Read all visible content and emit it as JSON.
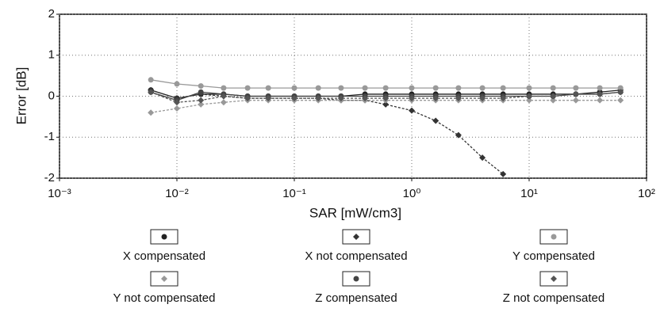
{
  "chart_data": {
    "type": "line",
    "x_label": "SAR [mW/cm3]",
    "y_label": "Error [dB]",
    "x_scale": "log",
    "grid": true,
    "xlim": [
      0.001,
      100
    ],
    "ylim": [
      -2,
      2
    ],
    "xticks": [
      {
        "value": 0.001,
        "label": "10⁻³"
      },
      {
        "value": 0.01,
        "label": "10⁻²"
      },
      {
        "value": 0.1,
        "label": "10⁻¹"
      },
      {
        "value": 1,
        "label": "10⁰"
      },
      {
        "value": 10,
        "label": "10¹"
      },
      {
        "value": 100,
        "label": "10²"
      }
    ],
    "yticks": [
      -2,
      -1,
      0,
      1,
      2
    ],
    "x": [
      0.006,
      0.01,
      0.016,
      0.025,
      0.04,
      0.06,
      0.1,
      0.16,
      0.25,
      0.4,
      0.6,
      1,
      1.6,
      2.5,
      4,
      6,
      10,
      16,
      25,
      40,
      60
    ],
    "series": [
      {
        "name": "X compensated",
        "color": "#222222",
        "marker": "circle",
        "values": [
          0.15,
          -0.05,
          0.05,
          0.05,
          0.0,
          0.0,
          0.0,
          0.0,
          0.0,
          0.05,
          0.05,
          0.05,
          0.05,
          0.05,
          0.05,
          0.05,
          0.05,
          0.05,
          0.05,
          0.1,
          0.15
        ]
      },
      {
        "name": "X not compensated",
        "color": "#333333",
        "marker": "diamond",
        "values": [
          0.15,
          -0.05,
          0.05,
          0.0,
          -0.05,
          -0.05,
          -0.05,
          -0.05,
          -0.1,
          -0.1,
          -0.2,
          -0.35,
          -0.6,
          -0.95,
          -1.5,
          -1.9,
          null,
          null,
          null,
          null,
          null
        ]
      },
      {
        "name": "Y compensated",
        "color": "#999999",
        "marker": "circle",
        "values": [
          0.4,
          0.3,
          0.25,
          0.2,
          0.2,
          0.2,
          0.2,
          0.2,
          0.2,
          0.2,
          0.2,
          0.2,
          0.2,
          0.2,
          0.2,
          0.2,
          0.2,
          0.2,
          0.2,
          0.2,
          0.2
        ]
      },
      {
        "name": "Y not compensated",
        "color": "#999999",
        "marker": "diamond",
        "values": [
          -0.4,
          -0.3,
          -0.2,
          -0.15,
          -0.1,
          -0.1,
          -0.1,
          -0.1,
          -0.1,
          -0.1,
          -0.1,
          -0.1,
          -0.1,
          -0.1,
          -0.1,
          -0.1,
          -0.1,
          -0.1,
          -0.1,
          -0.1,
          -0.1
        ]
      },
      {
        "name": "Z compensated",
        "color": "#444444",
        "marker": "circle",
        "values": [
          0.1,
          -0.1,
          0.1,
          0.05,
          0.0,
          0.0,
          0.0,
          0.0,
          0.0,
          0.0,
          0.0,
          0.0,
          0.0,
          0.0,
          0.0,
          0.0,
          0.0,
          0.0,
          0.05,
          0.05,
          0.1
        ]
      },
      {
        "name": "Z not compensated",
        "color": "#555555",
        "marker": "diamond",
        "values": [
          0.1,
          -0.15,
          -0.1,
          0.0,
          -0.05,
          -0.05,
          -0.05,
          -0.05,
          -0.05,
          -0.05,
          -0.05,
          -0.05,
          -0.05,
          -0.05,
          -0.05,
          -0.05,
          0.0,
          0.0,
          0.05,
          0.05,
          0.1
        ]
      }
    ]
  }
}
